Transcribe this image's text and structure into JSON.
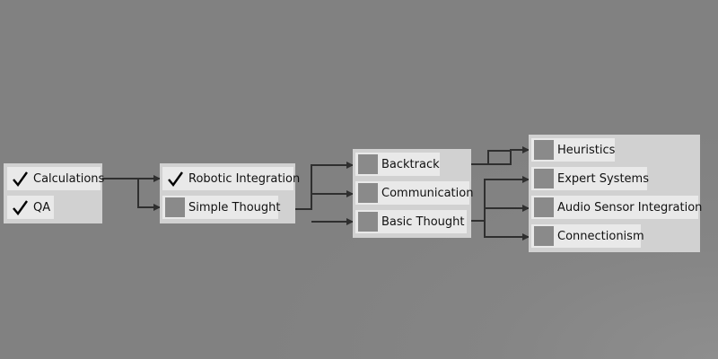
{
  "colors": {
    "background": "#818181",
    "panel": "#d1d1d1",
    "node": "#e9e9e9",
    "locked_box": "#8a8a8a",
    "wire": "#2f2f2f"
  },
  "tiers": [
    {
      "nodes": [
        {
          "label": "Calculations",
          "unlocked": true
        },
        {
          "label": "QA",
          "unlocked": true
        }
      ]
    },
    {
      "nodes": [
        {
          "label": "Robotic Integration",
          "unlocked": true
        },
        {
          "label": "Simple Thought",
          "unlocked": false
        }
      ]
    },
    {
      "nodes": [
        {
          "label": "Backtrack",
          "unlocked": false
        },
        {
          "label": "Communication",
          "unlocked": false
        },
        {
          "label": "Basic Thought",
          "unlocked": false
        }
      ]
    },
    {
      "nodes": [
        {
          "label": "Heuristics",
          "unlocked": false
        },
        {
          "label": "Expert Systems",
          "unlocked": false
        },
        {
          "label": "Audio Sensor Integration",
          "unlocked": false
        },
        {
          "label": "Connectionism",
          "unlocked": false
        }
      ]
    }
  ]
}
